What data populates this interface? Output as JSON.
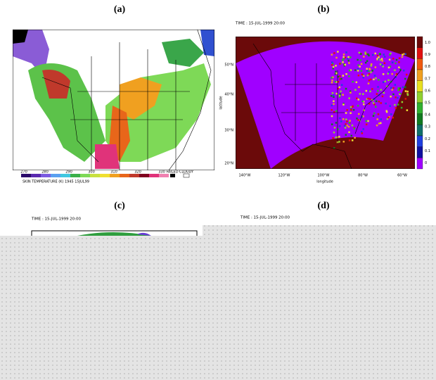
{
  "panels": [
    {
      "label": "(a)",
      "colorbar_labels": [
        "270",
        "280",
        "290",
        "300",
        "310",
        "320",
        "330",
        "FAILED",
        "CLOUDY"
      ],
      "caption": "SKIN TEMPERATURE (K)  1945  15JUL99"
    },
    {
      "label": "(b)",
      "time": "TIME : 15-JUL-1999 20:00",
      "colorbar_labels": [
        "1.0",
        "0.9",
        "0.8",
        "0.7",
        "0.6",
        "0.5",
        "0.4",
        "0.3",
        "0.2",
        "0.1",
        "0"
      ],
      "y_labels": [
        "50°N",
        "40°N",
        "30°N",
        "20°N"
      ],
      "x_labels": [
        "140°W",
        "120°W",
        "100°W",
        "80°W",
        "60°W"
      ],
      "y_title": "latitude",
      "x_title": "longitude"
    },
    {
      "label": "(c)",
      "time": "TIME : 15-JUL-1999 20:00"
    },
    {
      "label": "(d)",
      "time": "TIME : 15-JUL-1999 20:00"
    }
  ]
}
